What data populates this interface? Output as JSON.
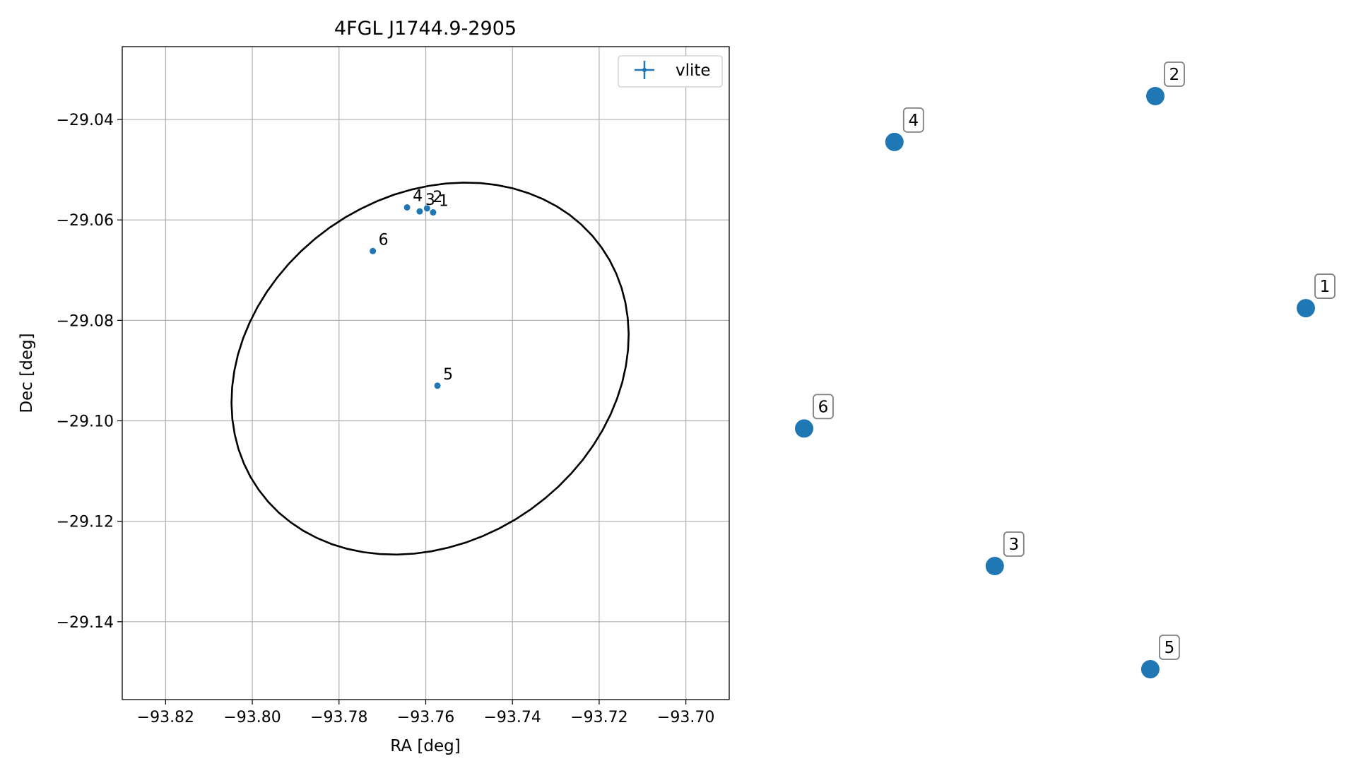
{
  "chart_data": [
    {
      "type": "scatter",
      "title": "4FGL J1744.9-2905",
      "xlabel": "RA [deg]",
      "ylabel": "Dec [deg]",
      "xlim": [
        -93.83,
        -93.69
      ],
      "ylim": [
        -29.1555,
        -29.0255
      ],
      "x_ticks": [
        -93.82,
        -93.8,
        -93.78,
        -93.76,
        -93.74,
        -93.72,
        -93.7
      ],
      "x_tick_labels": [
        "−93.82",
        "−93.80",
        "−93.78",
        "−93.76",
        "−93.74",
        "−93.72",
        "−93.70"
      ],
      "y_ticks": [
        -29.04,
        -29.06,
        -29.08,
        -29.1,
        -29.12,
        -29.14
      ],
      "y_tick_labels": [
        "−29.04",
        "−29.06",
        "−29.08",
        "−29.10",
        "−29.12",
        "−29.14"
      ],
      "grid": true,
      "legend": {
        "placement": "top-right",
        "entries": [
          "vlite"
        ]
      },
      "series": [
        {
          "name": "vlite",
          "color": "#1f77b4",
          "points": [
            {
              "label": "1",
              "x": -93.7583,
              "y": -29.0585
            },
            {
              "label": "2",
              "x": -93.7597,
              "y": -29.0577
            },
            {
              "label": "3",
              "x": -93.7614,
              "y": -29.0583
            },
            {
              "label": "4",
              "x": -93.7643,
              "y": -29.0575
            },
            {
              "label": "5",
              "x": -93.7573,
              "y": -29.093
            },
            {
              "label": "6",
              "x": -93.7722,
              "y": -29.0662
            }
          ]
        }
      ],
      "ellipse": {
        "color": "#000000",
        "center": [
          -93.759,
          -29.0896
        ],
        "semi_axis_a": 0.047,
        "semi_axis_b": 0.0355,
        "angle_deg": 20
      }
    },
    {
      "type": "scatter",
      "axes_visible": false,
      "color": "#1f77b4",
      "points": [
        {
          "label": "1",
          "x": 1.0,
          "y": 0.63
        },
        {
          "label": "2",
          "x": 0.7,
          "y": 1.0
        },
        {
          "label": "3",
          "x": 0.38,
          "y": 0.18
        },
        {
          "label": "4",
          "x": 0.18,
          "y": 0.92
        },
        {
          "label": "5",
          "x": 0.69,
          "y": 0.0
        },
        {
          "label": "6",
          "x": 0.0,
          "y": 0.42
        }
      ]
    }
  ]
}
